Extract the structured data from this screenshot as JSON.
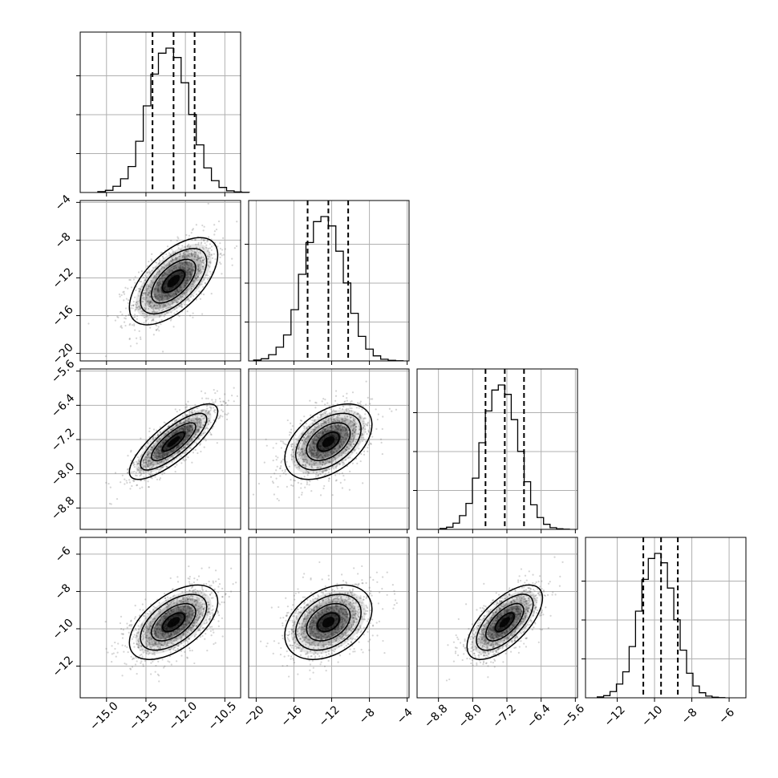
{
  "chart_data": {
    "type": "corner",
    "grid": true,
    "n_params": 4,
    "axis_ticks": [
      {
        "labels": [
          "−15.0",
          "−13.5",
          "−12.0",
          "−10.5"
        ],
        "values": [
          -15.0,
          -13.5,
          -12.0,
          -10.5
        ]
      },
      {
        "labels": [
          "−20",
          "−16",
          "−12",
          "−8",
          "−4"
        ],
        "values": [
          -20,
          -16,
          -12,
          -8,
          -4
        ]
      },
      {
        "labels": [
          "−8.8",
          "−8.0",
          "−7.2",
          "−6.4",
          "−5.6"
        ],
        "values": [
          -8.8,
          -8.0,
          -7.2,
          -6.4,
          -5.6
        ]
      },
      {
        "labels": [
          "−12",
          "−10",
          "−8",
          "−6"
        ],
        "values": [
          -12,
          -10,
          -8,
          -6
        ]
      }
    ],
    "ranges": [
      [
        -16.0,
        -9.9
      ],
      [
        -20.8,
        -3.8
      ],
      [
        -9.3,
        -5.55
      ],
      [
        -13.7,
        -5.1
      ]
    ],
    "means": [
      -12.45,
      -12.35,
      -7.25,
      -9.65
    ],
    "sigmas": [
      0.8,
      2.2,
      0.42,
      0.95
    ],
    "quantiles": [
      [
        -13.25,
        -12.45,
        -11.65
      ],
      [
        -14.55,
        -12.35,
        -10.25
      ],
      [
        -7.7,
        -7.25,
        -6.8
      ],
      [
        -10.6,
        -9.65,
        -8.75
      ]
    ],
    "correlations": [
      [
        1.0,
        0.6,
        0.8,
        0.55
      ],
      [
        0.6,
        1.0,
        0.45,
        0.35
      ],
      [
        0.8,
        0.45,
        1.0,
        0.65
      ],
      [
        0.55,
        0.35,
        0.65,
        1.0
      ]
    ],
    "histograms": {
      "bins": 20,
      "relative_counts": [
        0.006,
        0.015,
        0.043,
        0.095,
        0.18,
        0.355,
        0.6,
        0.82,
        0.965,
        1.0,
        0.935,
        0.76,
        0.54,
        0.33,
        0.17,
        0.082,
        0.035,
        0.012,
        0.004,
        0.001
      ]
    },
    "contour_levels_sigma": [
      0.5,
      1.0,
      1.5,
      2.0
    ],
    "colors": {
      "lines": "#000000",
      "scatter": "#555555",
      "grid": "#b0b0b0"
    }
  }
}
